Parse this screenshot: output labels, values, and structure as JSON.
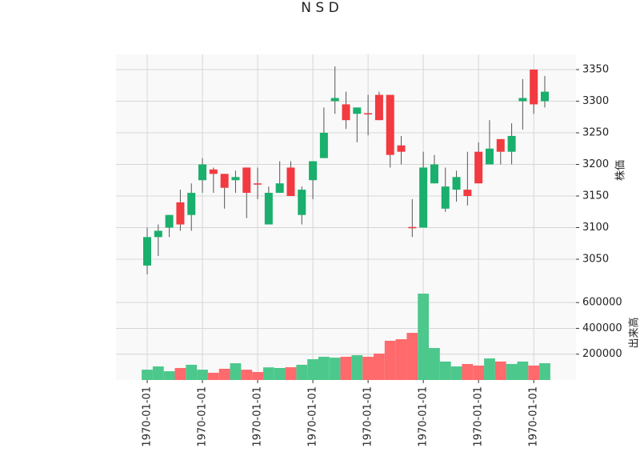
{
  "chart_data": {
    "type": "candlestick",
    "title": "N S D",
    "ylabel": "株価",
    "volume_ylabel": "出来高",
    "categories": [
      "1970-01-01",
      null,
      null,
      null,
      null,
      "1970-01-01",
      null,
      null,
      null,
      null,
      "1970-01-01",
      null,
      null,
      null,
      null,
      "1970-01-01",
      null,
      null,
      null,
      null,
      "1970-01-01",
      null,
      null,
      null,
      null,
      "1970-01-01",
      null,
      null,
      null,
      null,
      "1970-01-01",
      null,
      null,
      null,
      null,
      "1970-01-01",
      null
    ],
    "open": [
      3040,
      3085,
      3100,
      3140,
      3120,
      3175,
      3192,
      3185,
      3175,
      3195,
      3170,
      3105,
      3155,
      3195,
      3120,
      3175,
      3210,
      3300,
      3295,
      3280,
      3281,
      3310,
      3310,
      3230,
      3101,
      3100,
      3170,
      3130,
      3160,
      3160,
      3220,
      3200,
      3240,
      3220,
      3300,
      3350,
      3300
    ],
    "high": [
      3100,
      3105,
      3120,
      3160,
      3170,
      3210,
      3195,
      3185,
      3190,
      3195,
      3195,
      3165,
      3205,
      3205,
      3165,
      3205,
      3290,
      3355,
      3315,
      3290,
      3310,
      3315,
      3310,
      3245,
      3145,
      3220,
      3215,
      3195,
      3190,
      3220,
      3235,
      3270,
      3240,
      3265,
      3335,
      3350,
      3340
    ],
    "low": [
      3026,
      3055,
      3085,
      3095,
      3095,
      3155,
      3155,
      3130,
      3155,
      3115,
      3145,
      3105,
      3155,
      3150,
      3105,
      3145,
      3210,
      3280,
      3256,
      3235,
      3246,
      3270,
      3195,
      3200,
      3085,
      3100,
      3170,
      3125,
      3141,
      3135,
      3170,
      3200,
      3200,
      3200,
      3255,
      3280,
      3290
    ],
    "close": [
      3085,
      3095,
      3120,
      3105,
      3155,
      3200,
      3185,
      3163,
      3180,
      3155,
      3168,
      3155,
      3170,
      3150,
      3160,
      3205,
      3250,
      3305,
      3270,
      3290,
      3279,
      3270,
      3215,
      3220,
      3099,
      3195,
      3200,
      3165,
      3180,
      3150,
      3170,
      3225,
      3220,
      3245,
      3305,
      3295,
      3315
    ],
    "volume": [
      80000,
      105000,
      68000,
      93000,
      118000,
      80000,
      56000,
      87000,
      130000,
      80000,
      62000,
      98000,
      93000,
      99000,
      118000,
      161000,
      180000,
      173000,
      180000,
      192000,
      180000,
      205000,
      304000,
      316000,
      365000,
      669000,
      248000,
      143000,
      105000,
      124000,
      112000,
      167000,
      143000,
      124000,
      143000,
      112000,
      130000
    ],
    "ylim": [
      3007,
      3374
    ],
    "yticks": [
      3050,
      3100,
      3150,
      3200,
      3250,
      3300,
      3350
    ],
    "volume_ylim": [
      0,
      725000
    ],
    "volume_yticks": [
      200000,
      400000,
      600000
    ],
    "up_color": "#1aaf6c",
    "down_color": "#f23a40",
    "volume_up_color": "#4cc88c",
    "volume_down_color": "#ff6a6c",
    "grid": true
  }
}
